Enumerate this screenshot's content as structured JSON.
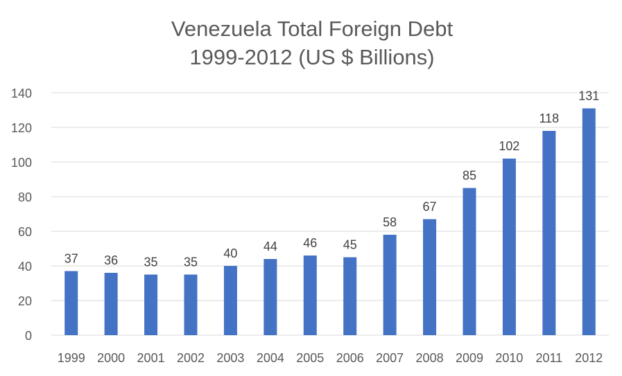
{
  "chart_data": {
    "type": "bar",
    "title": [
      "Venezuela Total Foreign Debt",
      "1999-2012 (US $ Billions)"
    ],
    "categories": [
      "1999",
      "2000",
      "2001",
      "2002",
      "2003",
      "2004",
      "2005",
      "2006",
      "2007",
      "2008",
      "2009",
      "2010",
      "2011",
      "2012"
    ],
    "values": [
      37,
      36,
      35,
      35,
      40,
      44,
      46,
      45,
      58,
      67,
      85,
      102,
      118,
      131
    ],
    "data_labels": [
      "37",
      "36",
      "35",
      "35",
      "40",
      "44",
      "46",
      "45",
      "58",
      "67",
      "85",
      "102",
      "118",
      "131"
    ],
    "xlabel": "",
    "ylabel": "",
    "ylim": [
      0,
      140
    ],
    "yticks": [
      0,
      20,
      40,
      60,
      80,
      100,
      120,
      140
    ],
    "grid": true,
    "legend": "none",
    "colors": {
      "bar": "#4472C4",
      "grid": "#D9D9D9",
      "text": "#595959",
      "label": "#404040"
    }
  }
}
